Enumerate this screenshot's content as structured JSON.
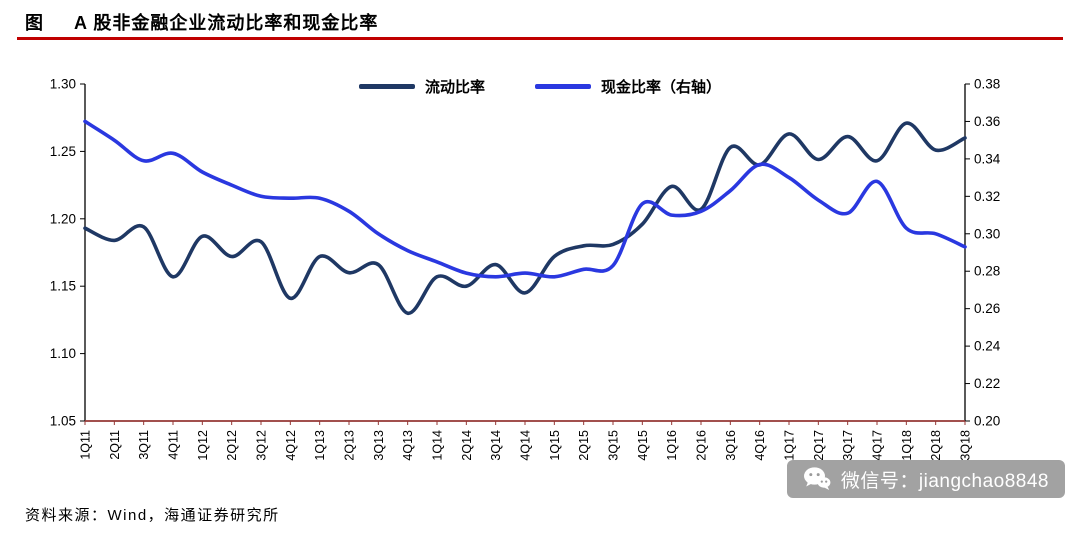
{
  "header": {
    "prefix": "图",
    "title": "A 股非金融企业流动比率和现金比率"
  },
  "footer": {
    "source": "资料来源：Wind，海通证券研究所"
  },
  "watermark": {
    "icon": "wechat-icon",
    "text": "微信号：jiangchao8848"
  },
  "chart_data": {
    "type": "line",
    "title": "A股非金融企业流动比率和现金比率",
    "grid": false,
    "legend_position": "top-center",
    "axis_color": "#000000",
    "baseline_color": "#953735",
    "line_width": 3.6,
    "categories": [
      "1Q11",
      "2Q11",
      "3Q11",
      "4Q11",
      "1Q12",
      "2Q12",
      "3Q12",
      "4Q12",
      "1Q13",
      "2Q13",
      "3Q13",
      "4Q13",
      "1Q14",
      "2Q14",
      "3Q14",
      "4Q14",
      "1Q15",
      "2Q15",
      "3Q15",
      "4Q15",
      "1Q16",
      "2Q16",
      "3Q16",
      "4Q16",
      "1Q17",
      "2Q17",
      "3Q17",
      "4Q17",
      "1Q18",
      "2Q18",
      "3Q18"
    ],
    "series": [
      {
        "id": "current-ratio",
        "name": "流动比率",
        "axis": "left",
        "color": "#1F3864",
        "values": [
          1.193,
          1.184,
          1.194,
          1.157,
          1.187,
          1.172,
          1.183,
          1.141,
          1.172,
          1.16,
          1.166,
          1.13,
          1.157,
          1.15,
          1.166,
          1.145,
          1.172,
          1.18,
          1.181,
          1.196,
          1.224,
          1.207,
          1.253,
          1.24,
          1.263,
          1.244,
          1.261,
          1.243,
          1.271,
          1.251,
          1.26
        ]
      },
      {
        "id": "cash-ratio",
        "name": "现金比率（右轴）",
        "axis": "right",
        "color": "#2A38E0",
        "values": [
          0.36,
          0.35,
          0.339,
          0.343,
          0.333,
          0.326,
          0.32,
          0.319,
          0.319,
          0.312,
          0.3,
          0.291,
          0.285,
          0.279,
          0.277,
          0.279,
          0.277,
          0.281,
          0.283,
          0.316,
          0.31,
          0.312,
          0.323,
          0.337,
          0.33,
          0.318,
          0.311,
          0.328,
          0.303,
          0.3,
          0.293
        ]
      }
    ],
    "left_axis": {
      "min": 1.05,
      "max": 1.3,
      "ticks": [
        "1.30",
        "1.25",
        "1.20",
        "1.15",
        "1.10",
        "1.05"
      ]
    },
    "right_axis": {
      "min": 0.2,
      "max": 0.38,
      "ticks": [
        "0.38",
        "0.36",
        "0.34",
        "0.32",
        "0.30",
        "0.28",
        "0.26",
        "0.24",
        "0.22",
        "0.20"
      ]
    }
  }
}
